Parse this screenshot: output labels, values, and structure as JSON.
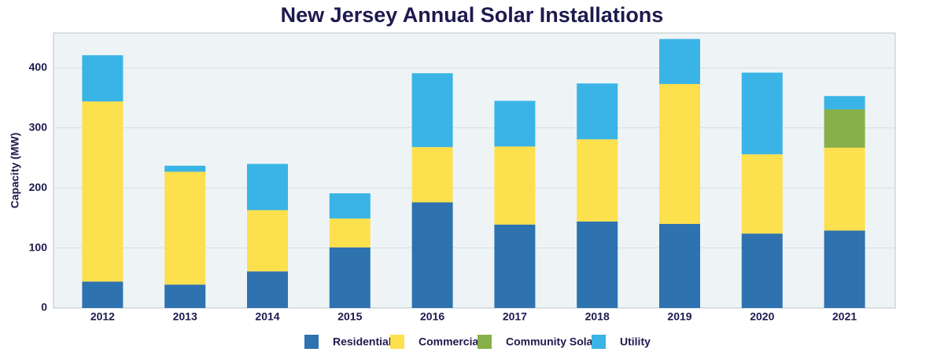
{
  "chart_data": {
    "type": "stacked-bar",
    "title": "New Jersey Annual Solar Installations",
    "y_label": "Capacity (MW)",
    "categories": [
      "2012",
      "2013",
      "2014",
      "2015",
      "2016",
      "2017",
      "2018",
      "2019",
      "2020",
      "2021"
    ],
    "series": [
      {
        "name": "Residential",
        "color": "#2e72b0",
        "values": [
          44,
          39,
          61,
          101,
          176,
          139,
          144,
          140,
          124,
          129
        ]
      },
      {
        "name": "Commercial",
        "color": "#fde04d",
        "values": [
          300,
          188,
          102,
          48,
          92,
          130,
          137,
          233,
          132,
          138
        ]
      },
      {
        "name": "Community Solar",
        "color": "#86b04a",
        "values": [
          0,
          0,
          0,
          0,
          0,
          0,
          0,
          0,
          0,
          64
        ]
      },
      {
        "name": "Utility",
        "color": "#3ab4e6",
        "values": [
          77,
          10,
          77,
          42,
          123,
          76,
          93,
          75,
          136,
          22
        ]
      }
    ],
    "ylim": [
      0,
      458
    ],
    "yticks": [
      0,
      100,
      200,
      300,
      400
    ],
    "grid": true,
    "legend": "bottom"
  }
}
